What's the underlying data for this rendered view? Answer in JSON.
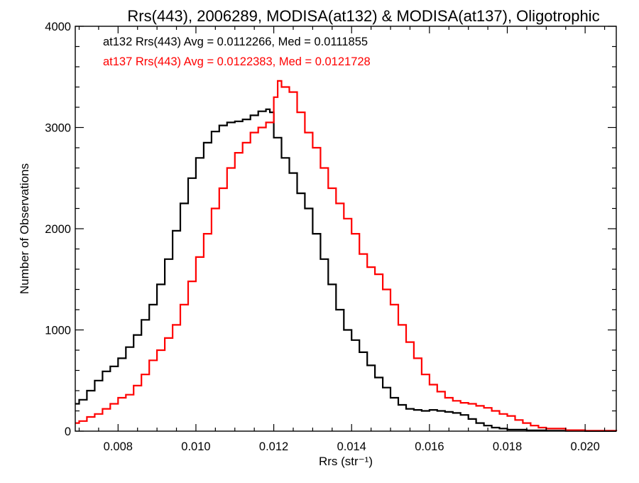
{
  "chart_data": {
    "type": "line",
    "title": "Rrs(443), 2006289, MODISA(at132) & MODISA(at137), Oligotrophic",
    "xlabel": "Rrs (str⁻¹)",
    "ylabel": "Number of Observations",
    "xlim": [
      0.0069,
      0.0208
    ],
    "ylim": [
      0,
      4000
    ],
    "x_ticks": [
      0.008,
      0.01,
      0.012,
      0.014,
      0.016,
      0.018,
      0.02
    ],
    "x_tick_labels": [
      "0.008",
      "0.010",
      "0.012",
      "0.014",
      "0.016",
      "0.018",
      "0.020"
    ],
    "y_ticks": [
      0,
      1000,
      2000,
      3000,
      4000
    ],
    "y_tick_labels": [
      "0",
      "1000",
      "2000",
      "3000",
      "4000"
    ],
    "grid": false,
    "legend_position": "top-left",
    "step_style": "histogram",
    "series": [
      {
        "name": "at132 Rrs(443) Avg = 0.0112266, Med = 0.0111855",
        "color": "#000000",
        "x": [
          0.0069,
          0.007,
          0.0072,
          0.0074,
          0.0076,
          0.0078,
          0.008,
          0.0082,
          0.0084,
          0.0086,
          0.0088,
          0.009,
          0.0092,
          0.0094,
          0.0096,
          0.0098,
          0.01,
          0.0102,
          0.0104,
          0.0106,
          0.0108,
          0.011,
          0.0112,
          0.0114,
          0.0116,
          0.0118,
          0.0119,
          0.012,
          0.0122,
          0.0124,
          0.0126,
          0.0128,
          0.013,
          0.0132,
          0.0134,
          0.0136,
          0.0138,
          0.014,
          0.0142,
          0.0144,
          0.0146,
          0.0148,
          0.015,
          0.0152,
          0.0154,
          0.0156,
          0.0158,
          0.016,
          0.0162,
          0.0164,
          0.0166,
          0.0168,
          0.017,
          0.0172,
          0.0174,
          0.0176,
          0.0178,
          0.018,
          0.0185,
          0.019,
          0.0195,
          0.02,
          0.0208
        ],
        "y": [
          270,
          310,
          400,
          500,
          590,
          640,
          720,
          830,
          950,
          1100,
          1250,
          1450,
          1700,
          1980,
          2250,
          2500,
          2700,
          2850,
          2960,
          3020,
          3050,
          3060,
          3080,
          3120,
          3160,
          3180,
          3150,
          2900,
          2700,
          2550,
          2350,
          2200,
          1950,
          1700,
          1450,
          1200,
          1000,
          900,
          780,
          650,
          530,
          430,
          330,
          260,
          220,
          210,
          200,
          210,
          200,
          190,
          180,
          160,
          120,
          80,
          55,
          35,
          25,
          15,
          8,
          4,
          2,
          1,
          0
        ]
      },
      {
        "name": "at137 Rrs(443) Avg = 0.0122383, Med = 0.0121728",
        "color": "#ff0000",
        "x": [
          0.0069,
          0.007,
          0.0072,
          0.0074,
          0.0076,
          0.0078,
          0.008,
          0.0082,
          0.0084,
          0.0086,
          0.0088,
          0.009,
          0.0092,
          0.0094,
          0.0096,
          0.0098,
          0.01,
          0.0102,
          0.0104,
          0.0106,
          0.0108,
          0.011,
          0.0112,
          0.0114,
          0.0116,
          0.0118,
          0.012,
          0.0121,
          0.0122,
          0.0124,
          0.0126,
          0.0128,
          0.013,
          0.0132,
          0.0134,
          0.0136,
          0.0138,
          0.014,
          0.0142,
          0.0144,
          0.0146,
          0.0148,
          0.015,
          0.0152,
          0.0154,
          0.0156,
          0.0158,
          0.016,
          0.0162,
          0.0164,
          0.0166,
          0.0168,
          0.017,
          0.0172,
          0.0174,
          0.0176,
          0.0178,
          0.018,
          0.0182,
          0.0184,
          0.0186,
          0.0188,
          0.019,
          0.0195,
          0.02,
          0.0208
        ],
        "y": [
          80,
          100,
          140,
          170,
          220,
          270,
          330,
          360,
          450,
          560,
          700,
          800,
          920,
          1050,
          1250,
          1480,
          1720,
          1950,
          2200,
          2400,
          2600,
          2750,
          2850,
          2950,
          3000,
          3050,
          3300,
          3460,
          3400,
          3350,
          3150,
          2950,
          2800,
          2600,
          2400,
          2250,
          2100,
          1950,
          1750,
          1620,
          1550,
          1400,
          1250,
          1050,
          880,
          720,
          560,
          460,
          390,
          330,
          300,
          280,
          270,
          250,
          230,
          200,
          170,
          150,
          110,
          80,
          55,
          35,
          25,
          10,
          5,
          0
        ]
      }
    ]
  }
}
